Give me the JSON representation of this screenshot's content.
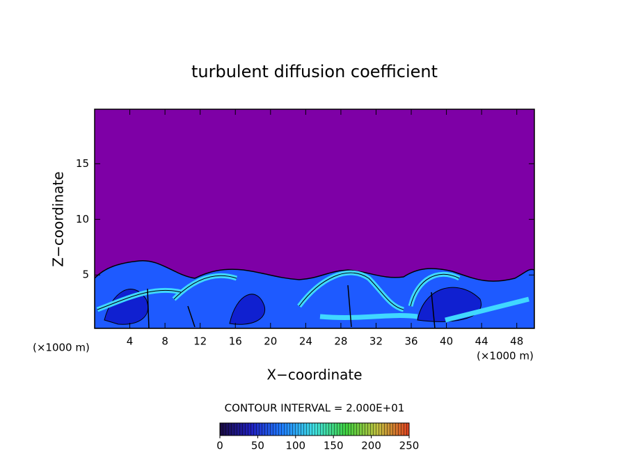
{
  "chart_data": {
    "type": "contour",
    "title": "turbulent diffusion coefficient",
    "xlabel": "X−coordinate",
    "ylabel": "Z−coordinate",
    "x_unit_left": "(×1000 m)",
    "x_unit_right": "(×1000 m)",
    "xlim": [
      0,
      50
    ],
    "xticks": [
      4,
      8,
      12,
      16,
      20,
      24,
      28,
      32,
      36,
      40,
      44,
      48
    ],
    "ylim": [
      0.2,
      19.9
    ],
    "yticks": [
      5,
      10,
      15
    ],
    "contour_label": "CONTOUR INTERVAL = 2.000E+01",
    "colorbar": {
      "lim": [
        0,
        250
      ],
      "ticks": [
        0,
        50,
        100,
        150,
        200,
        250
      ],
      "colors": [
        "#1a0a40",
        "#2020c0",
        "#2080ff",
        "#40e0e0",
        "#40d040",
        "#c0c040",
        "#e04020"
      ]
    }
  }
}
